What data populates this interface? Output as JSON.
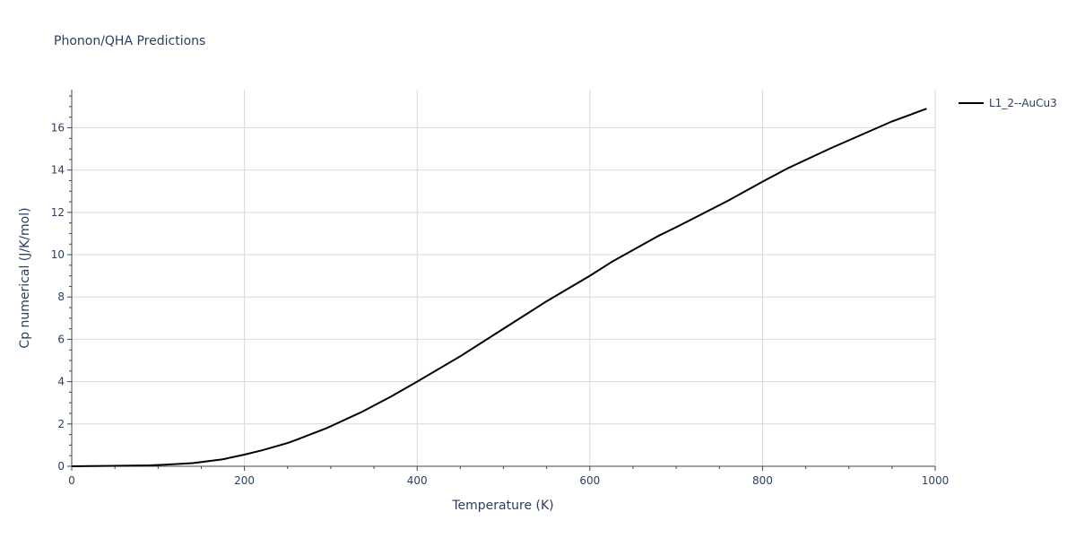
{
  "chart_data": {
    "type": "line",
    "title": "Phonon/QHA Predictions",
    "xlabel": "Temperature (K)",
    "ylabel": "Cp numerical (J/K/mol)",
    "xlim": [
      0,
      1000
    ],
    "ylim": [
      0,
      17.8
    ],
    "xticks": [
      0,
      200,
      400,
      600,
      800,
      1000
    ],
    "yticks": [
      0,
      2,
      4,
      6,
      8,
      10,
      12,
      14,
      16
    ],
    "grid": true,
    "legend_position": "top-right",
    "series": [
      {
        "name": "L1_2--AuCu3",
        "color": "#000000",
        "x": [
          0,
          50,
          90,
          110,
          140,
          175,
          200,
          220,
          250,
          260,
          295,
          335,
          370,
          400,
          450,
          500,
          550,
          600,
          625,
          680,
          700,
          760,
          800,
          830,
          880,
          950,
          990
        ],
        "y": [
          0,
          0.02,
          0.04,
          0.08,
          0.15,
          0.33,
          0.55,
          0.75,
          1.1,
          1.25,
          1.8,
          2.55,
          3.3,
          4.0,
          5.2,
          6.5,
          7.8,
          9.0,
          9.65,
          10.9,
          11.3,
          12.55,
          13.45,
          14.1,
          15.05,
          16.3,
          16.9
        ]
      }
    ]
  }
}
